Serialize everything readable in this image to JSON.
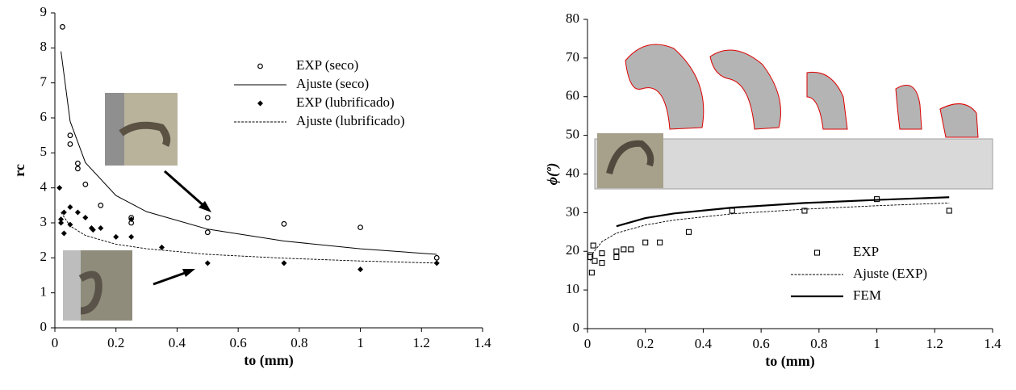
{
  "chart_data": [
    {
      "type": "scatter",
      "xlabel": "to (mm)",
      "ylabel": "rc",
      "xlim": [
        0,
        1.4
      ],
      "xticks": [
        0,
        0.2,
        0.4,
        0.6,
        0.8,
        1,
        1.2,
        1.4
      ],
      "ylim": [
        0,
        9
      ],
      "yticks": [
        0,
        1,
        2,
        3,
        4,
        5,
        6,
        7,
        8,
        9
      ],
      "series": [
        {
          "name": "EXP (seco)",
          "style": "circle-open",
          "color": "#000000",
          "x": [
            0.025,
            0.05,
            0.05,
            0.075,
            0.075,
            0.1,
            0.15,
            0.25,
            0.25,
            0.5,
            0.5,
            0.75,
            1.0,
            1.25
          ],
          "values": [
            8.6,
            5.5,
            5.25,
            4.7,
            4.55,
            4.1,
            3.5,
            3.15,
            3.0,
            3.15,
            2.73,
            2.97,
            2.87,
            2.0
          ]
        },
        {
          "name": "Ajuste (seco)",
          "style": "line-solid",
          "color": "#000000",
          "x": [
            0.02,
            0.05,
            0.1,
            0.2,
            0.3,
            0.5,
            0.75,
            1.0,
            1.25
          ],
          "values": [
            7.9,
            5.9,
            4.72,
            3.78,
            3.32,
            2.82,
            2.48,
            2.26,
            2.1
          ]
        },
        {
          "name": "EXP (lubrificado)",
          "style": "diamond",
          "color": "#000000",
          "x": [
            0.015,
            0.02,
            0.02,
            0.03,
            0.03,
            0.05,
            0.05,
            0.075,
            0.1,
            0.12,
            0.125,
            0.15,
            0.2,
            0.25,
            0.25,
            0.35,
            0.5,
            0.75,
            1.0,
            1.25
          ],
          "values": [
            4.0,
            3.1,
            3.0,
            3.3,
            2.7,
            3.45,
            2.95,
            3.3,
            3.15,
            2.85,
            2.8,
            2.85,
            2.6,
            2.6,
            3.1,
            2.3,
            1.85,
            1.85,
            1.67,
            1.85
          ]
        },
        {
          "name": "Ajuste (lubrificado)",
          "style": "line-dashed",
          "color": "#000000",
          "x": [
            0.02,
            0.05,
            0.1,
            0.2,
            0.3,
            0.5,
            0.75,
            1.0,
            1.25
          ],
          "values": [
            3.3,
            2.91,
            2.64,
            2.39,
            2.26,
            2.1,
            1.99,
            1.91,
            1.85
          ]
        }
      ]
    },
    {
      "type": "scatter",
      "xlabel": "to (mm)",
      "ylabel": "ϕ(º)",
      "xlim": [
        0,
        1.4
      ],
      "xticks": [
        0,
        0.2,
        0.4,
        0.6,
        0.8,
        1,
        1.2,
        1.4
      ],
      "ylim": [
        0,
        80
      ],
      "yticks": [
        0,
        10,
        20,
        30,
        40,
        50,
        60,
        70,
        80
      ],
      "series": [
        {
          "name": "EXP",
          "style": "square-open",
          "color": "#000000",
          "x": [
            0.01,
            0.01,
            0.015,
            0.02,
            0.025,
            0.05,
            0.05,
            0.1,
            0.1,
            0.125,
            0.15,
            0.2,
            0.25,
            0.35,
            0.5,
            0.75,
            1.0,
            1.25
          ],
          "values": [
            19,
            18.5,
            14.5,
            21.5,
            17.5,
            19.5,
            17,
            18.5,
            20,
            20.5,
            20.5,
            22.3,
            22.3,
            25,
            30.5,
            30.5,
            33.5,
            30.5
          ]
        },
        {
          "name": "Ajuste (EXP)",
          "style": "line-dashed",
          "color": "#000000",
          "x": [
            0.01,
            0.02,
            0.05,
            0.1,
            0.2,
            0.3,
            0.5,
            0.75,
            1.0,
            1.25
          ],
          "values": [
            17.5,
            19.7,
            22.5,
            24.7,
            26.8,
            28.1,
            29.7,
            30.9,
            31.8,
            32.5
          ]
        },
        {
          "name": "FEM",
          "style": "line-thick",
          "color": "#000000",
          "x": [
            0.1,
            0.2,
            0.3,
            0.5,
            0.75,
            1.0,
            1.25
          ],
          "values": [
            26.5,
            28.6,
            29.8,
            31.3,
            32.5,
            33.3,
            34.0
          ]
        }
      ]
    }
  ]
}
